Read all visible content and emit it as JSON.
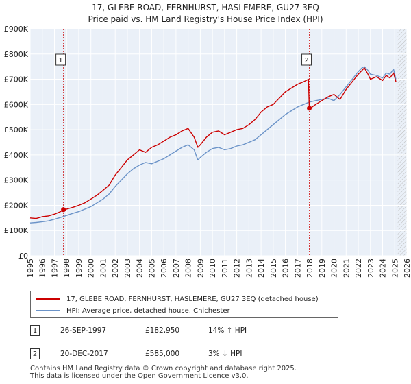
{
  "header": {
    "title_line1": "17, GLEBE ROAD, FERNHURST, HASLEMERE, GU27 3EQ",
    "title_line2": "Price paid vs. HM Land Registry's House Price Index (HPI)"
  },
  "colors": {
    "price_line": "#cc0000",
    "hpi_line": "#6b93c8",
    "plot_bg": "#eaf0f8",
    "grid": "#ffffff",
    "marker_line": "#cc0000",
    "hatch": "#bbbbbb"
  },
  "chart_data": {
    "type": "line",
    "title": "17, GLEBE ROAD, FERNHURST, HASLEMERE, GU27 3EQ",
    "subtitle": "Price paid vs. HM Land Registry's House Price Index (HPI)",
    "xlabel": "",
    "ylabel": "",
    "xlim": [
      1995,
      2026
    ],
    "ylim": [
      0,
      900000
    ],
    "x_ticks": [
      1995,
      1996,
      1997,
      1998,
      1999,
      2000,
      2001,
      2002,
      2003,
      2004,
      2005,
      2006,
      2007,
      2008,
      2009,
      2010,
      2011,
      2012,
      2013,
      2014,
      2015,
      2016,
      2017,
      2018,
      2019,
      2020,
      2021,
      2022,
      2023,
      2024,
      2025,
      2026
    ],
    "y_ticks": [
      {
        "value": 0,
        "label": "£0"
      },
      {
        "value": 100000,
        "label": "£100K"
      },
      {
        "value": 200000,
        "label": "£200K"
      },
      {
        "value": 300000,
        "label": "£300K"
      },
      {
        "value": 400000,
        "label": "£400K"
      },
      {
        "value": 500000,
        "label": "£500K"
      },
      {
        "value": 600000,
        "label": "£600K"
      },
      {
        "value": 700000,
        "label": "£700K"
      },
      {
        "value": 800000,
        "label": "£800K"
      },
      {
        "value": 900000,
        "label": "£900K"
      }
    ],
    "grid": true,
    "hatched_from": 2025.25,
    "series": [
      {
        "name": "17, GLEBE ROAD, FERNHURST, HASLEMERE, GU27 3EQ (detached house)",
        "color": "#cc0000",
        "x": [
          1995.0,
          1995.5,
          1996.0,
          1996.5,
          1997.0,
          1997.5,
          1997.74,
          1998.0,
          1998.5,
          1999.0,
          1999.5,
          2000.0,
          2000.5,
          2001.0,
          2001.5,
          2002.0,
          2002.5,
          2003.0,
          2003.5,
          2004.0,
          2004.5,
          2005.0,
          2005.5,
          2006.0,
          2006.5,
          2007.0,
          2007.5,
          2008.0,
          2008.5,
          2008.8,
          2009.0,
          2009.5,
          2010.0,
          2010.5,
          2011.0,
          2011.5,
          2012.0,
          2012.5,
          2013.0,
          2013.5,
          2014.0,
          2014.5,
          2015.0,
          2015.5,
          2016.0,
          2016.5,
          2017.0,
          2017.5,
          2017.9,
          2017.97,
          2018.2,
          2018.5,
          2019.0,
          2019.5,
          2020.0,
          2020.5,
          2021.0,
          2021.5,
          2022.0,
          2022.3,
          2022.5,
          2022.8,
          2023.0,
          2023.5,
          2024.0,
          2024.3,
          2024.6,
          2024.9,
          2025.1
        ],
        "values": [
          150000,
          148000,
          155000,
          158000,
          165000,
          175000,
          182950,
          185000,
          192000,
          200000,
          210000,
          225000,
          240000,
          260000,
          280000,
          320000,
          350000,
          380000,
          400000,
          420000,
          410000,
          430000,
          440000,
          455000,
          470000,
          480000,
          495000,
          505000,
          470000,
          430000,
          440000,
          470000,
          490000,
          495000,
          480000,
          490000,
          500000,
          505000,
          520000,
          540000,
          570000,
          590000,
          600000,
          625000,
          650000,
          665000,
          680000,
          690000,
          700000,
          585000,
          590000,
          600000,
          615000,
          630000,
          640000,
          620000,
          660000,
          690000,
          720000,
          735000,
          745000,
          720000,
          700000,
          710000,
          695000,
          715000,
          705000,
          725000,
          690000
        ]
      },
      {
        "name": "HPI: Average price, detached house, Chichester",
        "color": "#6b93c8",
        "x": [
          1995.0,
          1995.5,
          1996.0,
          1996.5,
          1997.0,
          1997.5,
          1998.0,
          1998.5,
          1999.0,
          1999.5,
          2000.0,
          2000.5,
          2001.0,
          2001.5,
          2002.0,
          2002.5,
          2003.0,
          2003.5,
          2004.0,
          2004.5,
          2005.0,
          2005.5,
          2006.0,
          2006.5,
          2007.0,
          2007.5,
          2008.0,
          2008.5,
          2008.8,
          2009.0,
          2009.5,
          2010.0,
          2010.5,
          2011.0,
          2011.5,
          2012.0,
          2012.5,
          2013.0,
          2013.5,
          2014.0,
          2014.5,
          2015.0,
          2015.5,
          2016.0,
          2016.5,
          2017.0,
          2017.5,
          2018.0,
          2018.5,
          2019.0,
          2019.5,
          2020.0,
          2020.5,
          2021.0,
          2021.5,
          2022.0,
          2022.3,
          2022.5,
          2022.8,
          2023.0,
          2023.5,
          2024.0,
          2024.3,
          2024.6,
          2024.9,
          2025.1
        ],
        "values": [
          130000,
          132000,
          135000,
          138000,
          145000,
          152000,
          160000,
          168000,
          175000,
          185000,
          195000,
          210000,
          225000,
          245000,
          275000,
          300000,
          325000,
          345000,
          360000,
          370000,
          365000,
          375000,
          385000,
          400000,
          415000,
          430000,
          440000,
          420000,
          380000,
          390000,
          410000,
          425000,
          430000,
          420000,
          425000,
          435000,
          440000,
          450000,
          460000,
          480000,
          500000,
          520000,
          540000,
          560000,
          575000,
          590000,
          600000,
          610000,
          615000,
          620000,
          625000,
          615000,
          640000,
          670000,
          700000,
          730000,
          745000,
          750000,
          735000,
          720000,
          715000,
          705000,
          725000,
          720000,
          740000,
          700000
        ]
      }
    ],
    "sales": [
      {
        "label": "1",
        "x": 1997.74,
        "value": 182950
      },
      {
        "label": "2",
        "x": 2017.97,
        "value": 585000
      }
    ]
  },
  "legend": {
    "items": [
      {
        "label": "17, GLEBE ROAD, FERNHURST, HASLEMERE, GU27 3EQ (detached house)"
      },
      {
        "label": "HPI: Average price, detached house, Chichester"
      }
    ]
  },
  "transactions": [
    {
      "num": "1",
      "date": "26-SEP-1997",
      "price": "£182,950",
      "hpi": "14% ↑ HPI"
    },
    {
      "num": "2",
      "date": "20-DEC-2017",
      "price": "£585,000",
      "hpi": "3% ↓ HPI"
    }
  ],
  "footer": {
    "line1": "Contains HM Land Registry data © Crown copyright and database right 2025.",
    "line2": "This data is licensed under the Open Government Licence v3.0."
  }
}
